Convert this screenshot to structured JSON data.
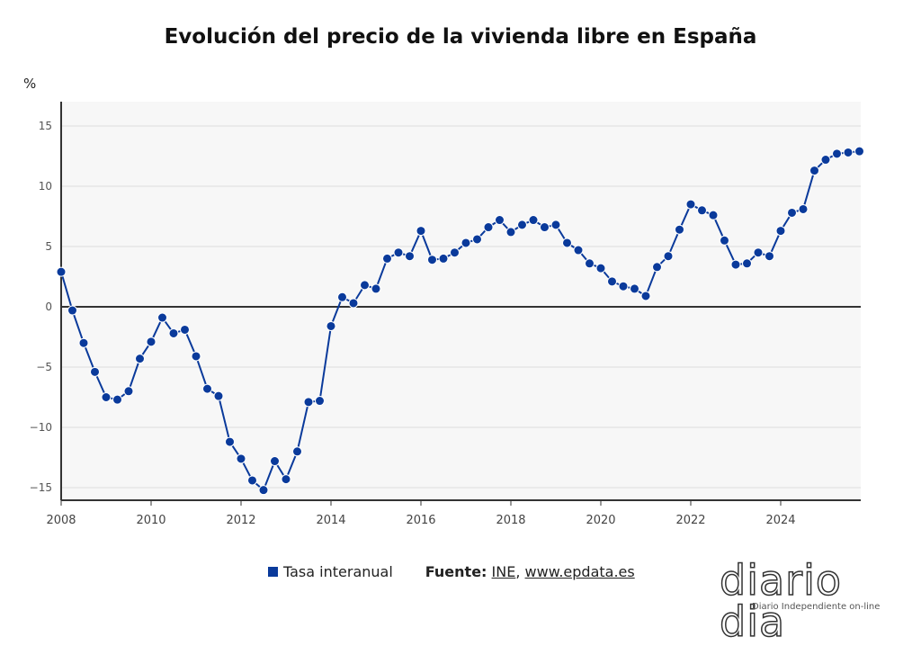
{
  "chart_data": {
    "type": "line",
    "title": "Evolución del precio de la vivienda libre en España",
    "ylabel": "%",
    "xlabel": "",
    "ylim": [
      -16,
      17
    ],
    "xlim": [
      2008,
      2025.75
    ],
    "yticks": [
      "15",
      "10",
      "5",
      "0",
      "−5",
      "−10",
      "−15"
    ],
    "ytick_values": [
      15,
      10,
      5,
      0,
      -5,
      -10,
      -15
    ],
    "xticks": [
      "2008",
      "2010",
      "2012",
      "2014",
      "2016",
      "2018",
      "2020",
      "2022",
      "2024"
    ],
    "grid": true,
    "legend_position": "bottom",
    "series": [
      {
        "name": "Tasa interanual",
        "color": "#0a3a9b",
        "x": [
          2008,
          2008.25,
          2008.5,
          2008.75,
          2009,
          2009.25,
          2009.5,
          2009.75,
          2010,
          2010.25,
          2010.5,
          2010.75,
          2011,
          2011.25,
          2011.5,
          2011.75,
          2012,
          2012.25,
          2012.5,
          2012.75,
          2013,
          2013.25,
          2013.5,
          2013.75,
          2014,
          2014.25,
          2014.5,
          2014.75,
          2015,
          2015.25,
          2015.5,
          2015.75,
          2016,
          2016.25,
          2016.5,
          2016.75,
          2017,
          2017.25,
          2017.5,
          2017.75,
          2018,
          2018.25,
          2018.5,
          2018.75,
          2019,
          2019.25,
          2019.5,
          2019.75,
          2020,
          2020.25,
          2020.5,
          2020.75,
          2021,
          2021.25,
          2021.5,
          2021.75,
          2022,
          2022.25,
          2022.5,
          2022.75,
          2023,
          2023.25,
          2023.5,
          2023.75,
          2024,
          2024.25,
          2024.5,
          2024.75,
          2025,
          2025.25,
          2025.5,
          2025.75
        ],
        "values": [
          2.9,
          -0.3,
          -3.0,
          -5.4,
          -7.5,
          -7.7,
          -7.0,
          -4.3,
          -2.9,
          -0.9,
          -2.2,
          -1.9,
          -4.1,
          -6.8,
          -7.4,
          -11.2,
          -12.6,
          -14.4,
          -15.2,
          -12.8,
          -14.3,
          -12.0,
          -7.9,
          -7.8,
          -1.6,
          0.8,
          0.3,
          1.8,
          1.5,
          4.0,
          4.5,
          4.2,
          6.3,
          3.9,
          4.0,
          4.5,
          5.3,
          5.6,
          6.6,
          7.2,
          6.2,
          6.8,
          7.2,
          6.6,
          6.8,
          5.3,
          4.7,
          3.6,
          3.2,
          2.1,
          1.7,
          1.5,
          0.9,
          3.3,
          4.2,
          6.4,
          8.5,
          8.0,
          7.6,
          5.5,
          3.5,
          3.6,
          4.5,
          4.2,
          6.3,
          7.8,
          8.1,
          11.3,
          12.2,
          12.7,
          12.8,
          12.9
        ]
      }
    ]
  },
  "legend": {
    "series_label": "Tasa interanual",
    "source_label": "Fuente:",
    "source_ine": "INE",
    "source_sep": ",",
    "source_site": "www.epdata.es"
  },
  "logo": {
    "name": "diario dia",
    "tagline": "Diario Independiente on-line"
  }
}
